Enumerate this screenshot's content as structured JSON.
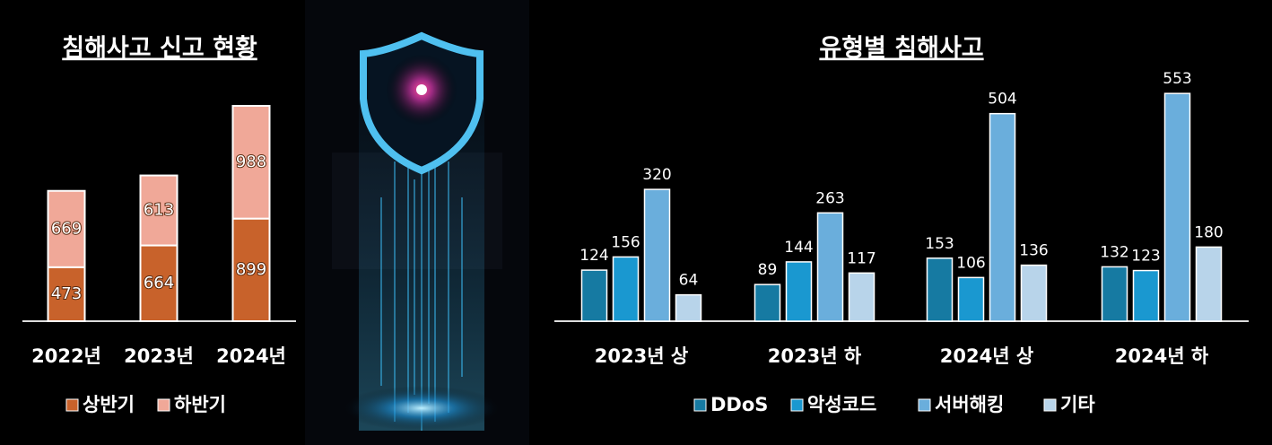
{
  "chart_data": [
    {
      "type": "stacked-bar",
      "title": "침해사고 신고 현황",
      "categories": [
        "2022년",
        "2023년",
        "2024년"
      ],
      "series": [
        {
          "name": "상반기",
          "color": "#c8622b",
          "values": [
            473,
            664,
            899
          ]
        },
        {
          "name": "하반기",
          "color": "#f0a898",
          "values": [
            669,
            613,
            988
          ]
        }
      ]
    },
    {
      "type": "grouped-bar",
      "title": "유형별 침해사고",
      "categories": [
        "2023년 상",
        "2023년 하",
        "2024년 상",
        "2024년 하"
      ],
      "series": [
        {
          "name": "DDoS",
          "color": "#167aa2",
          "values": [
            124,
            89,
            153,
            132
          ]
        },
        {
          "name": "악성코드",
          "color": "#1a98d0",
          "values": [
            156,
            144,
            106,
            123
          ]
        },
        {
          "name": "서버해킹",
          "color": "#6aaedc",
          "values": [
            320,
            263,
            504,
            553
          ]
        },
        {
          "name": "기타",
          "color": "#b8d4ea",
          "values": [
            64,
            117,
            136,
            180
          ]
        }
      ]
    }
  ]
}
